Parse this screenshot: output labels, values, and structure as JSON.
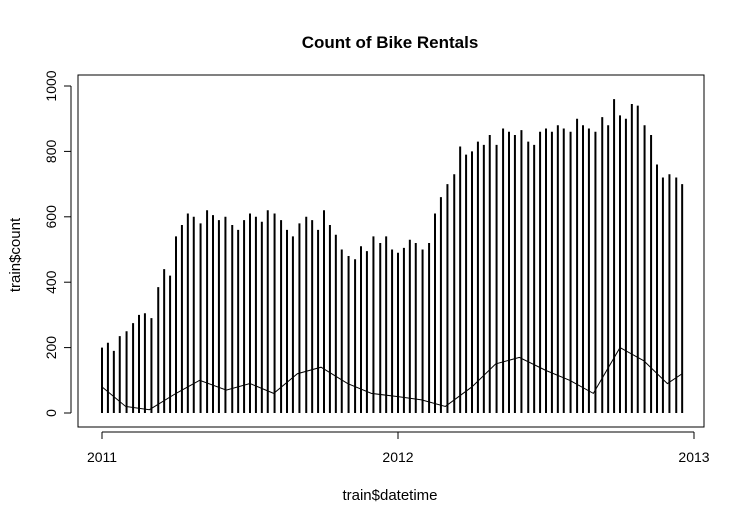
{
  "chart_data": {
    "type": "line",
    "title": "Count of Bike Rentals",
    "xlabel": "train$datetime",
    "ylabel": "train$count",
    "xlim": [
      2011.0,
      2013.0
    ],
    "ylim": [
      0,
      1000
    ],
    "x_ticks": [
      {
        "value": 2011,
        "label": "2011"
      },
      {
        "value": 2012,
        "label": "2012"
      },
      {
        "value": 2013,
        "label": "2013"
      }
    ],
    "y_ticks": [
      {
        "value": 0,
        "label": "0"
      },
      {
        "value": 200,
        "label": "200"
      },
      {
        "value": 400,
        "label": "400"
      },
      {
        "value": 600,
        "label": "600"
      },
      {
        "value": 800,
        "label": "800"
      },
      {
        "value": 1000,
        "label": "1000"
      }
    ],
    "grid": false,
    "legend": "none",
    "line_color": "#000000",
    "series": [
      {
        "x": [
          2011.0,
          2011.02,
          2011.04,
          2011.06,
          2011.083,
          2011.105,
          2011.125,
          2011.145,
          2011.167,
          2011.19,
          2011.21,
          2011.23,
          2011.25,
          2011.27,
          2011.29,
          2011.31,
          2011.333,
          2011.355,
          2011.375,
          2011.395,
          2011.417,
          2011.44,
          2011.46,
          2011.48,
          2011.5,
          2011.52,
          2011.54,
          2011.56,
          2011.583,
          2011.605,
          2011.625,
          2011.645,
          2011.667,
          2011.69,
          2011.71,
          2011.73,
          2011.75,
          2011.77,
          2011.79,
          2011.81,
          2011.833,
          2011.855,
          2011.875,
          2011.895,
          2011.917,
          2011.94,
          2011.96,
          2011.98,
          2012.0,
          2012.02,
          2012.04,
          2012.06,
          2012.083,
          2012.105,
          2012.125,
          2012.145,
          2012.167,
          2012.19,
          2012.21,
          2012.23,
          2012.25,
          2012.27,
          2012.29,
          2012.31,
          2012.333,
          2012.355,
          2012.375,
          2012.395,
          2012.417,
          2012.44,
          2012.46,
          2012.48,
          2012.5,
          2012.52,
          2012.54,
          2012.56,
          2012.583,
          2012.605,
          2012.625,
          2012.645,
          2012.667,
          2012.69,
          2012.71,
          2012.73,
          2012.75,
          2012.77,
          2012.79,
          2012.81,
          2012.833,
          2012.855,
          2012.875,
          2012.895,
          2012.917,
          2012.94,
          2012.96
        ],
        "y": [
          200,
          215,
          190,
          235,
          250,
          275,
          300,
          305,
          290,
          385,
          440,
          420,
          540,
          575,
          610,
          600,
          580,
          620,
          605,
          590,
          600,
          575,
          560,
          590,
          610,
          600,
          585,
          620,
          610,
          590,
          560,
          540,
          580,
          600,
          590,
          560,
          620,
          575,
          545,
          500,
          480,
          470,
          510,
          495,
          540,
          520,
          540,
          500,
          490,
          505,
          530,
          520,
          500,
          520,
          610,
          660,
          700,
          730,
          815,
          790,
          800,
          830,
          820,
          850,
          820,
          870,
          860,
          850,
          865,
          830,
          820,
          860,
          870,
          860,
          880,
          870,
          860,
          900,
          880,
          870,
          860,
          905,
          880,
          960,
          910,
          900,
          945,
          940,
          880,
          850,
          760,
          720,
          730,
          720,
          700
        ],
        "low": 0
      }
    ],
    "trend_line": {
      "x": [
        2011.0,
        2011.08,
        2011.16,
        2011.25,
        2011.33,
        2011.42,
        2011.5,
        2011.58,
        2011.66,
        2011.74,
        2011.83,
        2011.91,
        2012.0,
        2012.08,
        2012.16,
        2012.25,
        2012.33,
        2012.41,
        2012.5,
        2012.58,
        2012.66,
        2012.75,
        2012.83,
        2012.91,
        2012.96
      ],
      "y": [
        80,
        20,
        10,
        60,
        100,
        70,
        90,
        60,
        120,
        140,
        90,
        60,
        50,
        40,
        20,
        80,
        150,
        170,
        130,
        100,
        60,
        200,
        160,
        90,
        120
      ]
    }
  }
}
